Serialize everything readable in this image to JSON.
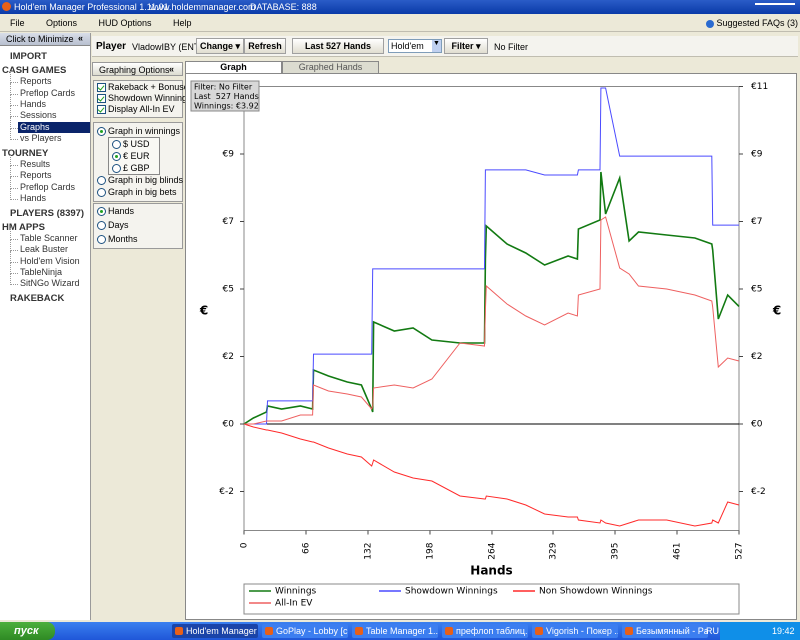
{
  "window": {
    "title": "Hold'em Manager Professional 1.11.01",
    "site": "www.holdemmanager.com",
    "database": "DATABASE: 888"
  },
  "menu": [
    "File",
    "Options",
    "HUD Options",
    "Help"
  ],
  "faq": "Suggested FAQs (3)",
  "sidebar": {
    "minimize": "Click to Minimize",
    "collapse": "«",
    "sections": [
      {
        "title": "IMPORT"
      },
      {
        "title": "CASH GAMES",
        "items": [
          {
            "label": "Reports"
          },
          {
            "label": "Preflop Cards"
          },
          {
            "label": "Hands"
          },
          {
            "label": "Sessions"
          },
          {
            "label": "Graphs",
            "selected": true
          },
          {
            "label": "vs Players"
          }
        ]
      },
      {
        "title": "TOURNEY",
        "items": [
          {
            "label": "Results"
          },
          {
            "label": "Reports"
          },
          {
            "label": "Preflop Cards"
          },
          {
            "label": "Hands"
          }
        ]
      },
      {
        "title": "PLAYERS (8397)"
      },
      {
        "title": "HM APPS",
        "items": [
          {
            "label": "Table Scanner"
          },
          {
            "label": "Leak Buster"
          },
          {
            "label": "Hold'em Vision"
          },
          {
            "label": "TableNinja"
          },
          {
            "label": "SitNGo Wizard"
          }
        ]
      },
      {
        "title": "RAKEBACK"
      }
    ]
  },
  "toolbar": {
    "player_label": "Player",
    "player": "VladowIBY (ENT)",
    "change": "Change",
    "refresh": "Refresh",
    "range": "Last 527 Hands",
    "game": "Hold'em",
    "filter": "Filter",
    "filter_value": "No Filter"
  },
  "options": {
    "title": "Graphing Options",
    "collapse": "«",
    "checkboxes": [
      {
        "label": "Rakeback + Bonuses",
        "checked": true
      },
      {
        "label": "Showdown Winnings",
        "checked": true
      },
      {
        "label": "Display All-In EV",
        "checked": true
      }
    ],
    "graph_in": [
      {
        "label": "Graph in winnings",
        "checked": true
      },
      {
        "label": "Graph in big blinds",
        "checked": false
      },
      {
        "label": "Graph in big bets",
        "checked": false
      }
    ],
    "currencies": [
      {
        "label": "$ USD",
        "checked": false
      },
      {
        "label": "€ EUR",
        "checked": true
      },
      {
        "label": "£ GBP",
        "checked": false
      }
    ],
    "periods": [
      {
        "label": "Hands",
        "checked": true
      },
      {
        "label": "Days",
        "checked": false
      },
      {
        "label": "Months",
        "checked": false
      }
    ]
  },
  "tabs": [
    {
      "label": "Graph",
      "active": true
    },
    {
      "label": "Graphed Hands",
      "active": false
    }
  ],
  "chart_data": {
    "type": "line",
    "x_label": "Hands",
    "y_label": "€",
    "info": [
      "Filter: No Filter",
      "Last  527 Hands",
      "Winnings: €3.92"
    ],
    "xlim": [
      0,
      527
    ],
    "xticks": [
      0,
      66,
      132,
      198,
      264,
      329,
      395,
      461,
      527
    ],
    "ylim": [
      -3.55,
      11.25
    ],
    "yticks": [
      {
        "value": -2.25,
        "label": "€-2"
      },
      {
        "value": 0,
        "label": "€0"
      },
      {
        "value": 2.25,
        "label": "€2"
      },
      {
        "value": 4.5,
        "label": "€5"
      },
      {
        "value": 6.75,
        "label": "€7"
      },
      {
        "value": 9,
        "label": "€9"
      },
      {
        "value": 11.25,
        "label": "€11"
      }
    ],
    "x": [
      0,
      10,
      24,
      25,
      40,
      60,
      73,
      74,
      90,
      110,
      125,
      136,
      137,
      138,
      160,
      180,
      200,
      230,
      256,
      257,
      258,
      280,
      300,
      320,
      345,
      355,
      356,
      379,
      380,
      385,
      400,
      410,
      420,
      450,
      480,
      498,
      499,
      505,
      515,
      527
    ],
    "series": [
      {
        "name": "Winnings",
        "color": "#127a12",
        "values": [
          0,
          0.2,
          0.4,
          0.6,
          0.5,
          0.6,
          0.5,
          1.8,
          1.6,
          1.4,
          1.3,
          0.5,
          0.4,
          3.4,
          3.1,
          3.2,
          2.8,
          2.7,
          2.7,
          5.5,
          6.6,
          6.0,
          5.7,
          5.3,
          5.6,
          5.5,
          6.5,
          6.8,
          8.4,
          7.0,
          8.2,
          6.1,
          6.4,
          6.3,
          6.2,
          6.0,
          5.8,
          3.5,
          4.3,
          3.92
        ]
      },
      {
        "name": "Showdown Winnings",
        "color": "#4a4aff",
        "values": [
          0,
          0,
          0,
          0.77,
          0.77,
          0.77,
          0.77,
          2.33,
          2.33,
          2.33,
          2.33,
          2.33,
          5.17,
          5.17,
          5.17,
          5.17,
          5.17,
          5.17,
          5.17,
          8.47,
          8.47,
          8.47,
          8.47,
          8.3,
          8.3,
          8.3,
          8.47,
          8.47,
          11.2,
          11.2,
          8.93,
          8.93,
          8.93,
          8.93,
          8.93,
          8.93,
          6.63,
          6.63,
          6.63,
          6.63
        ]
      },
      {
        "name": "Non Showdown Winnings",
        "color": "#ff2a2a",
        "values": [
          0,
          -0.1,
          -0.2,
          -0.2,
          -0.3,
          -0.5,
          -0.6,
          -0.6,
          -0.8,
          -1.0,
          -1.1,
          -1.4,
          -1.3,
          -1.2,
          -1.6,
          -1.8,
          -1.9,
          -2.4,
          -2.5,
          -2.5,
          -2.4,
          -2.5,
          -2.7,
          -3.0,
          -3.1,
          -3.1,
          -3.2,
          -3.3,
          -3.2,
          -3.3,
          -3.4,
          -3.3,
          -3.2,
          -3.2,
          -3.4,
          -3.3,
          -3.2,
          -3.3,
          -2.6,
          -2.7
        ]
      },
      {
        "name": "All-In EV",
        "color": "#ee6060",
        "values": [
          0,
          0,
          0.1,
          0.1,
          0.1,
          0.3,
          0.3,
          1.3,
          1.1,
          1.0,
          0.9,
          0.5,
          0.6,
          1.2,
          1.3,
          1.2,
          1.5,
          2.7,
          2.6,
          3.8,
          4.6,
          4.0,
          3.6,
          3.3,
          3.7,
          3.6,
          4.3,
          4.5,
          6.8,
          6.9,
          5.2,
          5.0,
          4.6,
          4.5,
          4.3,
          4.1,
          3.9,
          1.9,
          2.2,
          2.1
        ]
      }
    ]
  },
  "taskbar": {
    "start": "пуск",
    "items": [
      "Hold'em Manager ...",
      "GoPlay - Lobby [c...",
      "Table Manager 1....",
      "префлоп таблиц...",
      "Vigorish - Покер ...",
      "Безымянный - Pa..."
    ],
    "lang": "RU",
    "clock": "19:42"
  }
}
